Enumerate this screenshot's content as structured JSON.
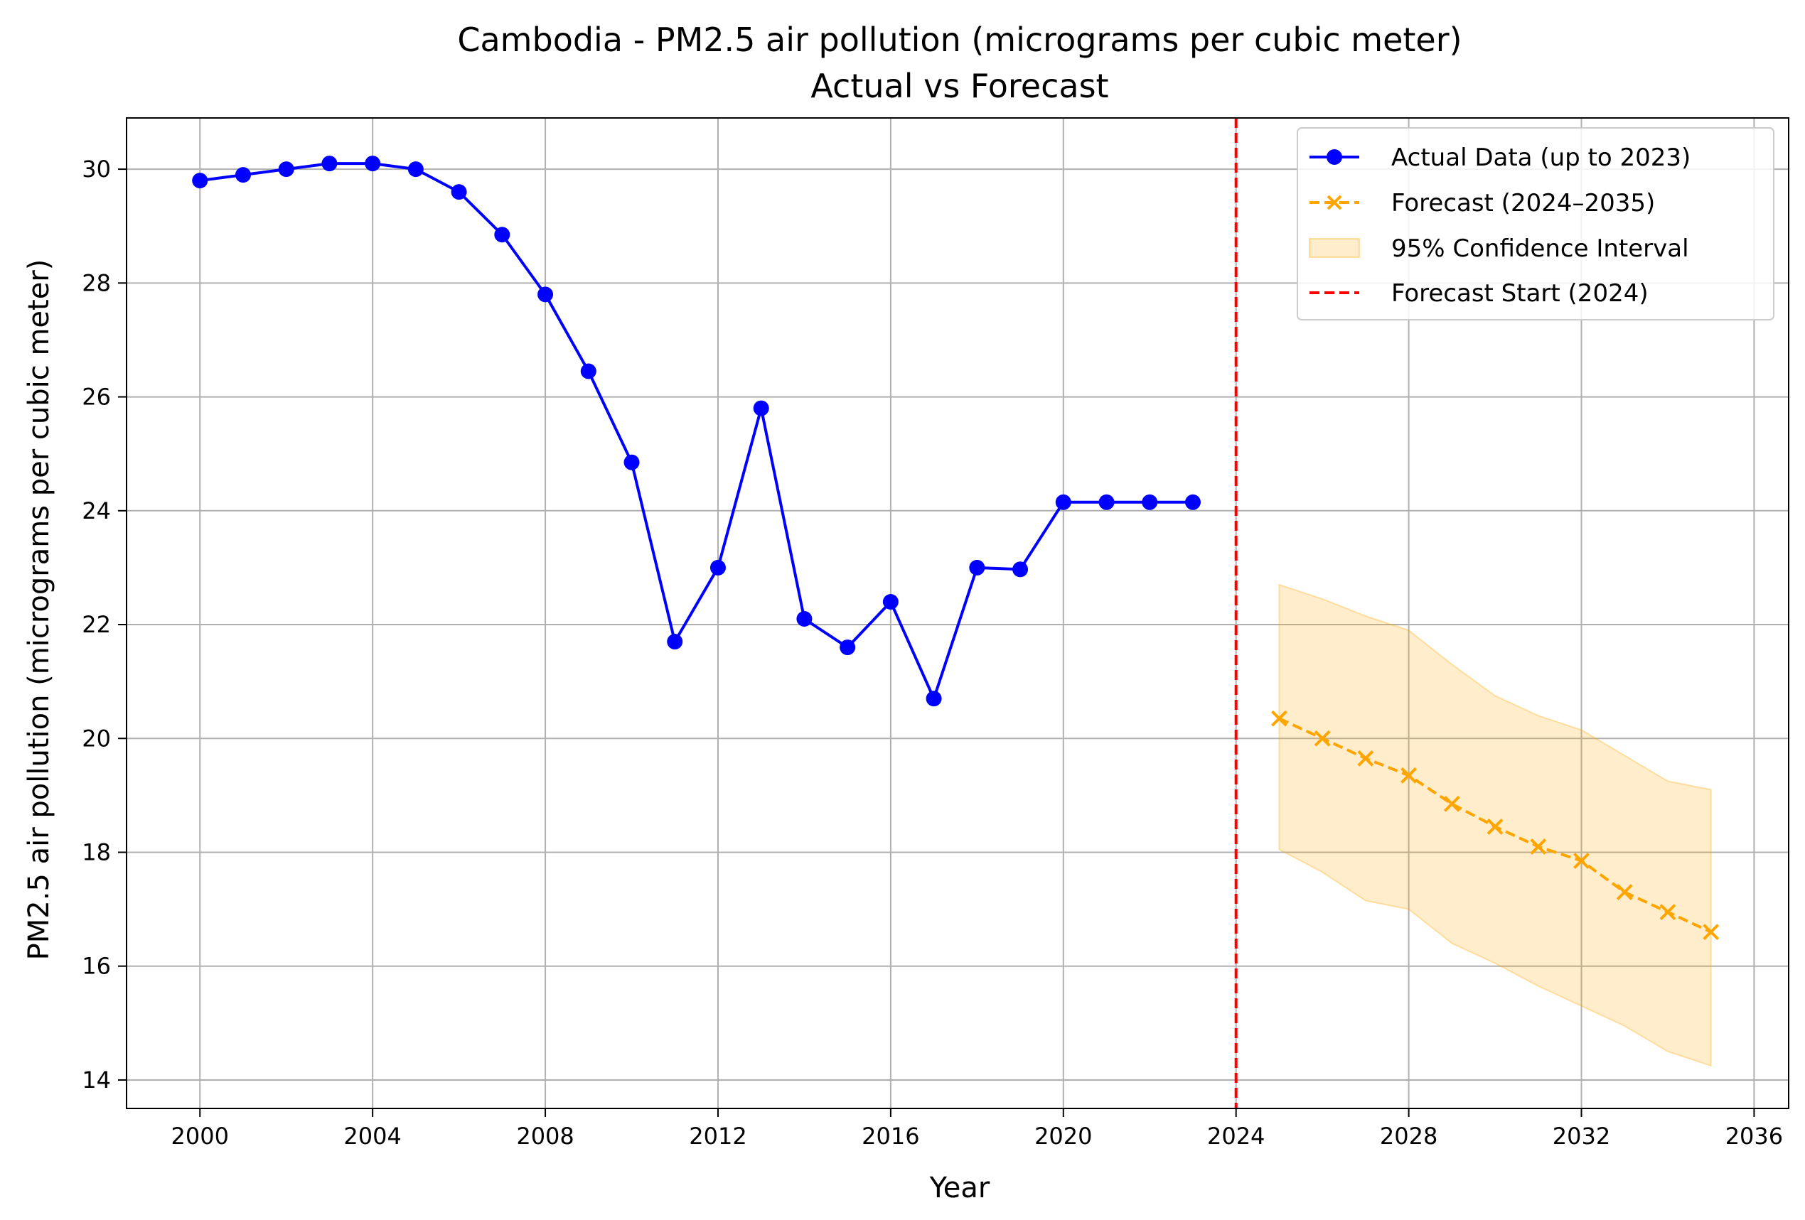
{
  "chart_data": {
    "type": "line",
    "title": "Cambodia - PM2.5 air pollution (micrograms per cubic meter)",
    "subtitle": "Actual vs Forecast",
    "xlabel": "Year",
    "ylabel": "PM2.5 air pollution (micrograms per cubic meter)",
    "xlim": [
      1998.3,
      2036.8
    ],
    "ylim": [
      13.5,
      30.9
    ],
    "xticks": [
      2000,
      2004,
      2008,
      2012,
      2016,
      2020,
      2024,
      2028,
      2032,
      2036
    ],
    "yticks": [
      14,
      16,
      18,
      20,
      22,
      24,
      26,
      28,
      30
    ],
    "grid": true,
    "legend_position": "top-right",
    "series": [
      {
        "name": "Actual Data (up to 2023)",
        "color": "#0000ff",
        "marker": "circle",
        "line_style": "solid",
        "x": [
          2000,
          2001,
          2002,
          2003,
          2004,
          2005,
          2006,
          2007,
          2008,
          2009,
          2010,
          2011,
          2012,
          2013,
          2014,
          2015,
          2016,
          2017,
          2018,
          2019,
          2020,
          2021,
          2022,
          2023
        ],
        "y": [
          29.8,
          29.9,
          30.0,
          30.1,
          30.1,
          30.0,
          29.6,
          28.85,
          27.8,
          26.45,
          24.85,
          21.7,
          23.0,
          25.8,
          22.1,
          21.6,
          22.4,
          20.7,
          23.0,
          22.97,
          24.15,
          24.15,
          24.15,
          24.15
        ]
      },
      {
        "name": "Forecast (2024–2035)",
        "color": "#ffa500",
        "marker": "x",
        "line_style": "dashed",
        "x": [
          2025,
          2026,
          2027,
          2028,
          2029,
          2030,
          2031,
          2032,
          2033,
          2034,
          2035
        ],
        "y": [
          20.35,
          20.0,
          19.65,
          19.35,
          18.85,
          18.45,
          18.1,
          17.85,
          17.3,
          16.95,
          16.6
        ]
      }
    ],
    "confidence_interval": {
      "name": "95% Confidence Interval",
      "color": "#ffa500",
      "x": [
        2025,
        2026,
        2027,
        2028,
        2029,
        2030,
        2031,
        2032,
        2033,
        2034,
        2035
      ],
      "lower": [
        18.05,
        17.65,
        17.15,
        17.0,
        16.4,
        16.05,
        15.65,
        15.3,
        14.95,
        14.5,
        14.25
      ],
      "upper": [
        22.7,
        22.45,
        22.15,
        21.9,
        21.3,
        20.75,
        20.4,
        20.15,
        19.7,
        19.25,
        19.1
      ]
    },
    "forecast_start": {
      "name": "Forecast Start (2024)",
      "x": 2024,
      "color": "#ff0000",
      "line_style": "dashed"
    }
  }
}
